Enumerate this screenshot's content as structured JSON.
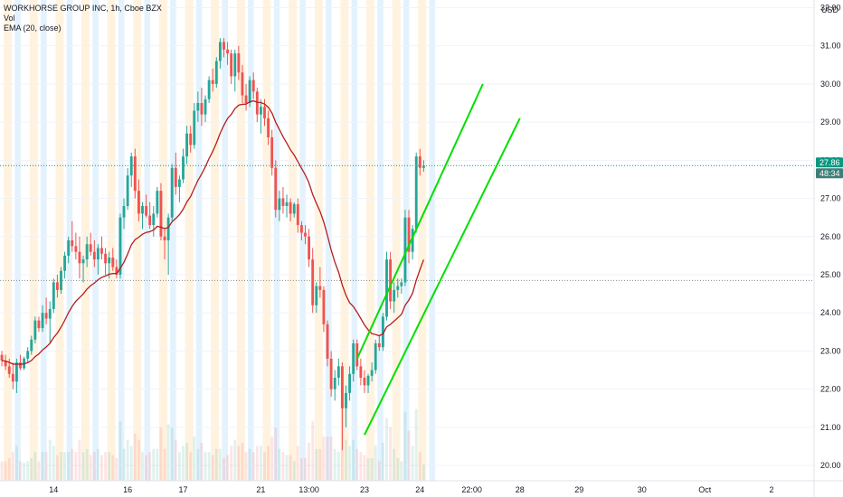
{
  "legend": {
    "symbol": "WORKHORSE GROUP INC, 1h, Cboe BZX",
    "vol": "Vol",
    "ema": "EMA (20, close)"
  },
  "price_axis": {
    "currency": "USD",
    "current_price": "27.86",
    "countdown": "48:34"
  },
  "colors": {
    "up": "#26a69a",
    "down": "#ef5350",
    "ema": "#b71c1c",
    "channel": "#00e000",
    "session_pre": "#fff3e0",
    "session_post": "#e3f2fd",
    "grid": "#f0f3fa",
    "price_tag": "#089981",
    "countdown_tag": "#3d7e78"
  },
  "chart_data": {
    "type": "candlestick",
    "interval": "1h",
    "y_range": [
      19.6,
      32.2
    ],
    "y_ticks": [
      "20.00",
      "21.00",
      "22.00",
      "23.00",
      "24.00",
      "25.00",
      "26.00",
      "27.00",
      "28.00",
      "29.00",
      "30.00",
      "31.00",
      "32.00"
    ],
    "x_ticks": [
      "14",
      "16",
      "17",
      "21",
      "13:00",
      "23",
      "24",
      "22:00",
      "28",
      "29",
      "30",
      "Oct",
      "2"
    ],
    "x_tick_index": [
      14,
      34,
      49,
      70,
      83,
      98,
      113,
      127,
      140,
      156,
      173,
      190,
      208
    ],
    "slots_total": 220,
    "reference_price_line": 24.85,
    "last_price": 27.86,
    "ohlc": [
      [
        22.9,
        23.0,
        22.6,
        22.75
      ],
      [
        22.75,
        22.9,
        22.5,
        22.6
      ],
      [
        22.6,
        22.8,
        22.3,
        22.4
      ],
      [
        22.4,
        22.7,
        22.0,
        22.2
      ],
      [
        22.2,
        22.8,
        21.9,
        22.7
      ],
      [
        22.7,
        22.9,
        22.5,
        22.55
      ],
      [
        22.55,
        22.85,
        22.5,
        22.8
      ],
      [
        22.8,
        23.1,
        22.7,
        23.0
      ],
      [
        23.0,
        23.4,
        22.9,
        23.3
      ],
      [
        23.3,
        23.9,
        23.2,
        23.8
      ],
      [
        23.8,
        23.9,
        23.5,
        23.6
      ],
      [
        23.6,
        24.2,
        23.5,
        24.0
      ],
      [
        24.0,
        24.4,
        23.7,
        23.85
      ],
      [
        23.85,
        24.3,
        23.2,
        24.1
      ],
      [
        24.1,
        24.9,
        24.0,
        24.8
      ],
      [
        24.8,
        25.0,
        24.4,
        24.6
      ],
      [
        24.6,
        25.2,
        24.5,
        25.1
      ],
      [
        25.1,
        25.6,
        24.9,
        25.5
      ],
      [
        25.5,
        26.0,
        25.3,
        25.9
      ],
      [
        25.9,
        26.4,
        25.6,
        25.75
      ],
      [
        25.75,
        26.1,
        25.4,
        25.6
      ],
      [
        25.6,
        26.0,
        24.9,
        25.3
      ],
      [
        25.3,
        25.5,
        24.8,
        25.4
      ],
      [
        25.4,
        26.0,
        25.2,
        25.8
      ],
      [
        25.8,
        26.1,
        25.5,
        25.6
      ],
      [
        25.6,
        25.9,
        25.2,
        25.4
      ],
      [
        25.4,
        25.8,
        25.0,
        25.7
      ],
      [
        25.7,
        26.0,
        25.4,
        25.55
      ],
      [
        25.55,
        25.7,
        25.0,
        25.3
      ],
      [
        25.3,
        25.6,
        24.9,
        25.45
      ],
      [
        25.45,
        25.7,
        25.1,
        25.2
      ],
      [
        25.2,
        25.4,
        24.9,
        25.0
      ],
      [
        25.0,
        26.6,
        24.9,
        26.5
      ],
      [
        26.5,
        27.0,
        26.2,
        26.8
      ],
      [
        26.8,
        27.8,
        26.7,
        27.6
      ],
      [
        27.6,
        28.2,
        27.3,
        28.1
      ],
      [
        28.1,
        28.3,
        27.0,
        27.2
      ],
      [
        27.2,
        27.5,
        26.4,
        26.6
      ],
      [
        26.6,
        26.9,
        26.2,
        26.8
      ],
      [
        26.8,
        27.1,
        26.5,
        26.55
      ],
      [
        26.55,
        26.9,
        26.2,
        26.3
      ],
      [
        26.3,
        26.8,
        26.0,
        26.6
      ],
      [
        26.6,
        27.3,
        26.5,
        27.2
      ],
      [
        27.2,
        27.4,
        25.9,
        26.0
      ],
      [
        26.0,
        26.2,
        25.4,
        25.9
      ],
      [
        25.9,
        26.6,
        25.0,
        26.5
      ],
      [
        26.5,
        27.9,
        26.4,
        27.8
      ],
      [
        27.8,
        28.2,
        27.1,
        27.3
      ],
      [
        27.3,
        27.6,
        26.9,
        27.5
      ],
      [
        27.5,
        28.3,
        27.4,
        28.1
      ],
      [
        28.1,
        28.9,
        27.9,
        28.7
      ],
      [
        28.7,
        28.9,
        28.2,
        28.4
      ],
      [
        28.4,
        29.5,
        28.3,
        29.3
      ],
      [
        29.3,
        29.8,
        29.0,
        29.5
      ],
      [
        29.5,
        29.9,
        28.9,
        29.2
      ],
      [
        29.2,
        29.7,
        29.0,
        29.6
      ],
      [
        29.6,
        30.2,
        29.5,
        30.1
      ],
      [
        30.1,
        30.4,
        29.8,
        30.0
      ],
      [
        30.0,
        30.7,
        29.9,
        30.6
      ],
      [
        30.6,
        31.2,
        30.4,
        31.1
      ],
      [
        31.1,
        31.2,
        30.7,
        30.9
      ],
      [
        30.9,
        31.1,
        30.5,
        30.8
      ],
      [
        30.8,
        30.9,
        30.0,
        30.2
      ],
      [
        30.2,
        30.9,
        29.8,
        30.8
      ],
      [
        30.8,
        31.0,
        30.1,
        30.3
      ],
      [
        30.3,
        30.5,
        29.5,
        29.7
      ],
      [
        29.7,
        30.0,
        29.3,
        29.5
      ],
      [
        29.5,
        30.2,
        29.4,
        30.1
      ],
      [
        30.1,
        30.3,
        29.6,
        29.8
      ],
      [
        29.8,
        29.9,
        29.0,
        29.2
      ],
      [
        29.2,
        29.6,
        28.7,
        29.4
      ],
      [
        29.4,
        29.6,
        28.9,
        29.1
      ],
      [
        29.1,
        29.3,
        28.4,
        28.6
      ],
      [
        28.6,
        28.8,
        27.6,
        27.8
      ],
      [
        27.8,
        28.0,
        26.5,
        26.7
      ],
      [
        26.7,
        27.2,
        26.4,
        27.0
      ],
      [
        27.0,
        27.3,
        26.6,
        26.8
      ],
      [
        26.8,
        27.1,
        26.5,
        26.9
      ],
      [
        26.9,
        27.0,
        26.4,
        26.6
      ],
      [
        26.6,
        26.9,
        26.5,
        26.85
      ],
      [
        26.85,
        27.0,
        26.1,
        26.3
      ],
      [
        26.3,
        26.4,
        25.9,
        26.1
      ],
      [
        26.1,
        26.3,
        25.8,
        26.0
      ],
      [
        26.0,
        26.2,
        25.2,
        25.4
      ],
      [
        25.4,
        25.7,
        24.0,
        24.2
      ],
      [
        24.2,
        24.8,
        24.0,
        24.7
      ],
      [
        24.7,
        25.2,
        24.4,
        24.6
      ],
      [
        24.6,
        24.7,
        23.5,
        23.7
      ],
      [
        23.7,
        23.8,
        22.6,
        22.8
      ],
      [
        22.8,
        23.0,
        21.8,
        22.0
      ],
      [
        22.0,
        22.5,
        21.7,
        22.3
      ],
      [
        22.3,
        22.8,
        22.1,
        22.6
      ],
      [
        22.6,
        22.7,
        20.4,
        21.5
      ],
      [
        21.5,
        22.1,
        21.0,
        21.9
      ],
      [
        21.9,
        22.6,
        21.7,
        22.4
      ],
      [
        22.4,
        23.3,
        22.2,
        23.2
      ],
      [
        23.2,
        23.3,
        22.5,
        22.6
      ],
      [
        22.6,
        22.8,
        22.1,
        22.3
      ],
      [
        22.3,
        22.5,
        21.9,
        22.1
      ],
      [
        22.1,
        22.4,
        21.9,
        22.35
      ],
      [
        22.35,
        22.7,
        22.2,
        22.5
      ],
      [
        22.5,
        23.3,
        22.4,
        23.2
      ],
      [
        23.2,
        23.4,
        23.0,
        23.1
      ],
      [
        23.1,
        24.0,
        23.0,
        23.9
      ],
      [
        23.9,
        25.6,
        23.8,
        25.4
      ],
      [
        25.4,
        25.6,
        24.1,
        24.3
      ],
      [
        24.3,
        24.8,
        24.0,
        24.6
      ],
      [
        24.6,
        24.9,
        24.4,
        24.7
      ],
      [
        24.7,
        24.9,
        24.5,
        24.8
      ],
      [
        24.8,
        26.7,
        24.7,
        26.5
      ],
      [
        26.5,
        26.7,
        25.3,
        25.6
      ],
      [
        25.6,
        26.3,
        25.4,
        26.2
      ],
      [
        26.2,
        28.2,
        26.1,
        28.1
      ],
      [
        28.1,
        28.3,
        27.6,
        27.8
      ],
      [
        27.8,
        28.0,
        27.7,
        27.86
      ]
    ],
    "channel_lines": [
      {
        "from": [
          96,
          22.8
        ],
        "to": [
          130,
          30.0
        ]
      },
      {
        "from": [
          98,
          20.8
        ],
        "to": [
          140,
          29.1
        ]
      }
    ]
  }
}
